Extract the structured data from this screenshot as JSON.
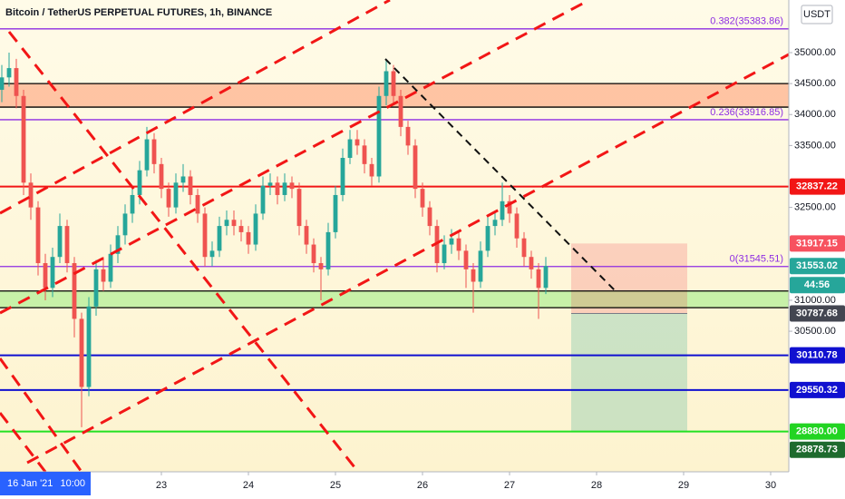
{
  "chart_data": {
    "type": "candlestick",
    "title": "Bitcoin / TetherUS PERPETUAL FUTURES, 1h, BINANCE",
    "currency": "USDT",
    "crosshair_date": "16 Jan '21",
    "crosshair_time": "10:00",
    "countdown": "44:56",
    "up_color": "#26a69a",
    "down_color": "#ef5350",
    "last_color": "#26a69a",
    "xlim": [
      -20.5,
      197
    ],
    "ylim": [
      28230,
      35850
    ],
    "xticks": [
      {
        "value": 24,
        "label": "23"
      },
      {
        "value": 48,
        "label": "24"
      },
      {
        "value": 72,
        "label": "25"
      },
      {
        "value": 96,
        "label": "26"
      },
      {
        "value": 120,
        "label": "27"
      },
      {
        "value": 144,
        "label": "28"
      },
      {
        "value": 168,
        "label": "29"
      },
      {
        "value": 192,
        "label": "30"
      }
    ],
    "yticks": [
      {
        "value": 35000,
        "label": "35000.00"
      },
      {
        "value": 34500,
        "label": "34500.00"
      },
      {
        "value": 34000,
        "label": "34000.00"
      },
      {
        "value": 33500,
        "label": "33500.00"
      },
      {
        "value": 32500,
        "label": "32500.00"
      },
      {
        "value": 31000,
        "label": "31000.00"
      },
      {
        "value": 30500,
        "label": "30500.00"
      }
    ],
    "x": [
      -20,
      -18,
      -16,
      -14,
      -12,
      -10,
      -8,
      -6,
      -4,
      -2,
      0,
      2,
      4,
      6,
      8,
      10,
      12,
      14,
      16,
      18,
      20,
      22,
      24,
      26,
      28,
      30,
      32,
      34,
      36,
      38,
      40,
      42,
      44,
      46,
      48,
      50,
      52,
      54,
      56,
      58,
      60,
      62,
      64,
      66,
      68,
      70,
      72,
      74,
      76,
      78,
      80,
      82,
      84,
      86,
      88,
      90,
      92,
      94,
      96,
      98,
      100,
      102,
      104,
      106,
      108,
      110,
      112,
      114,
      116,
      118,
      120,
      122,
      124,
      126,
      128,
      130
    ],
    "open": [
      34400,
      34600,
      34750,
      34300,
      32900,
      32500,
      31600,
      31200,
      31700,
      32200,
      31600,
      30700,
      29600,
      30900,
      31500,
      31300,
      31750,
      32050,
      32400,
      32700,
      33100,
      33600,
      33200,
      32800,
      32500,
      32900,
      33000,
      32700,
      32400,
      31700,
      31800,
      32200,
      32300,
      32200,
      32100,
      31900,
      32400,
      32850,
      32900,
      32700,
      32900,
      32800,
      32200,
      31900,
      31600,
      31500,
      32100,
      32700,
      33300,
      33600,
      33500,
      33200,
      33000,
      34300,
      34700,
      34300,
      33800,
      33500,
      32800,
      32500,
      32200,
      31600,
      31900,
      32000,
      31800,
      31500,
      31300,
      31800,
      32200,
      32300,
      32600,
      32400,
      32000,
      31700,
      31500,
      31200
    ],
    "high": [
      34800,
      35000,
      34900,
      34400,
      33050,
      32600,
      31750,
      31850,
      32400,
      32300,
      31700,
      30800,
      31050,
      31650,
      31700,
      31900,
      32200,
      32550,
      32850,
      33250,
      33800,
      33700,
      33300,
      32900,
      33050,
      33200,
      33100,
      32800,
      32500,
      31950,
      32350,
      32450,
      32450,
      32300,
      32200,
      32550,
      33000,
      33050,
      33000,
      33050,
      33000,
      32900,
      32300,
      32000,
      31700,
      32250,
      32850,
      33450,
      33750,
      33750,
      33600,
      33300,
      34450,
      34900,
      34800,
      34400,
      33900,
      33600,
      32900,
      32600,
      32300,
      32050,
      32150,
      32100,
      31900,
      31600,
      31950,
      32350,
      32450,
      32900,
      32700,
      32500,
      32100,
      31800,
      31600,
      31700
    ],
    "low": [
      34200,
      34450,
      34100,
      32700,
      32300,
      31400,
      31000,
      31050,
      31600,
      31450,
      30400,
      28950,
      29450,
      30750,
      31150,
      31200,
      31600,
      31900,
      32250,
      32550,
      33000,
      33050,
      32650,
      32350,
      32400,
      32750,
      32550,
      32250,
      31550,
      31550,
      31700,
      32050,
      32050,
      31950,
      31750,
      31800,
      32300,
      32700,
      32550,
      32600,
      32650,
      32050,
      31750,
      31450,
      31000,
      31400,
      32000,
      32600,
      33200,
      33350,
      33050,
      32850,
      32900,
      34150,
      34150,
      33650,
      33350,
      32650,
      32350,
      32050,
      31450,
      31500,
      31750,
      31650,
      31200,
      30800,
      31200,
      31700,
      32050,
      32200,
      32250,
      31850,
      31550,
      31350,
      30700,
      31100
    ],
    "close": [
      34600,
      34750,
      34300,
      32900,
      32500,
      31600,
      31200,
      31700,
      32200,
      31600,
      30700,
      29600,
      30900,
      31500,
      31300,
      31750,
      32050,
      32400,
      32700,
      33100,
      33600,
      33200,
      32800,
      32500,
      32900,
      33000,
      32700,
      32400,
      31700,
      31800,
      32200,
      32300,
      32200,
      32100,
      31900,
      32400,
      32850,
      32900,
      32700,
      32900,
      32800,
      32200,
      31900,
      31600,
      31500,
      32100,
      32700,
      33300,
      33600,
      33500,
      33200,
      33000,
      34300,
      34700,
      34300,
      33800,
      33500,
      32800,
      32500,
      32200,
      31600,
      31900,
      32000,
      31800,
      31500,
      31300,
      31800,
      32200,
      32300,
      32600,
      32400,
      32000,
      31700,
      31500,
      31200,
      31553.02
    ],
    "zones": [
      {
        "top": 34500,
        "bottom": 34120,
        "color": "rgba(255,110,60,0.38)"
      },
      {
        "top": 31150,
        "bottom": 30880,
        "color": "rgba(110,235,90,0.38)"
      }
    ],
    "hlines": [
      {
        "value": 35383.86,
        "color": "#8e2de2",
        "label": "0.382(35383.86)"
      },
      {
        "value": 33916.85,
        "color": "#8e2de2",
        "label": "0.236(33916.85)"
      },
      {
        "value": 31545.51,
        "color": "#8e2de2",
        "label": "0(31545.51)"
      },
      {
        "value": 32837.22,
        "color": "#f21616",
        "tag": "#f21616"
      },
      {
        "value": 34500,
        "color": "#000000"
      },
      {
        "value": 34120,
        "color": "#000000"
      },
      {
        "value": 31150,
        "color": "#000000"
      },
      {
        "value": 30880,
        "color": "#000000"
      },
      {
        "value": 30110.78,
        "color": "#1010d0",
        "tag": "#1010d0"
      },
      {
        "value": 29550.32,
        "color": "#1010d0",
        "tag": "#1010d0"
      },
      {
        "value": 28880,
        "color": "#22e022",
        "tag": "#22d422",
        "tag_label": "28880.00"
      }
    ],
    "position": {
      "start": 137,
      "end": 169,
      "stop": 31917.15,
      "entry": 30787.68,
      "target": 28880,
      "stop_color": "#f7525f",
      "entry_color": "#434651"
    },
    "extra_tags": [
      {
        "value": 28878.73,
        "color": "#1e6b2e"
      }
    ]
  }
}
